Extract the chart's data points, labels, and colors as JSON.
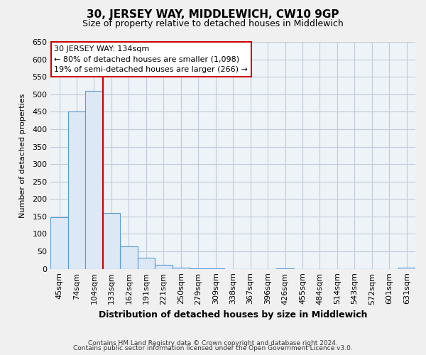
{
  "title": "30, JERSEY WAY, MIDDLEWICH, CW10 9GP",
  "subtitle": "Size of property relative to detached houses in Middlewich",
  "xlabel": "Distribution of detached houses by size in Middlewich",
  "ylabel": "Number of detached properties",
  "footnote1": "Contains HM Land Registry data © Crown copyright and database right 2024.",
  "footnote2": "Contains public sector information licensed under the Open Government Licence v3.0.",
  "bar_labels": [
    "45sqm",
    "74sqm",
    "104sqm",
    "133sqm",
    "162sqm",
    "191sqm",
    "221sqm",
    "250sqm",
    "279sqm",
    "309sqm",
    "338sqm",
    "367sqm",
    "396sqm",
    "426sqm",
    "455sqm",
    "484sqm",
    "514sqm",
    "543sqm",
    "572sqm",
    "601sqm",
    "631sqm"
  ],
  "bar_values": [
    148,
    450,
    510,
    160,
    65,
    32,
    12,
    3,
    2,
    2,
    0,
    0,
    0,
    2,
    0,
    0,
    0,
    0,
    0,
    0,
    3
  ],
  "bar_fill_color": "#dce8f5",
  "bar_edge_color": "#5b9bd5",
  "marker_line_color": "#cc0000",
  "marker_line_index": 3,
  "annotation_title": "30 JERSEY WAY: 134sqm",
  "annotation_line1": "← 80% of detached houses are smaller (1,098)",
  "annotation_line2": "19% of semi-detached houses are larger (266) →",
  "annotation_box_facecolor": "#ffffff",
  "annotation_box_edgecolor": "#cc0000",
  "ylim": [
    0,
    650
  ],
  "yticks": [
    0,
    50,
    100,
    150,
    200,
    250,
    300,
    350,
    400,
    450,
    500,
    550,
    600,
    650
  ],
  "background_color": "#f0f0f0",
  "plot_background_color": "#eef3f8",
  "grid_color": "#c0ccd8",
  "title_fontsize": 11,
  "subtitle_fontsize": 9,
  "tick_fontsize": 8,
  "xlabel_fontsize": 9,
  "ylabel_fontsize": 8,
  "footnote_fontsize": 6.5
}
